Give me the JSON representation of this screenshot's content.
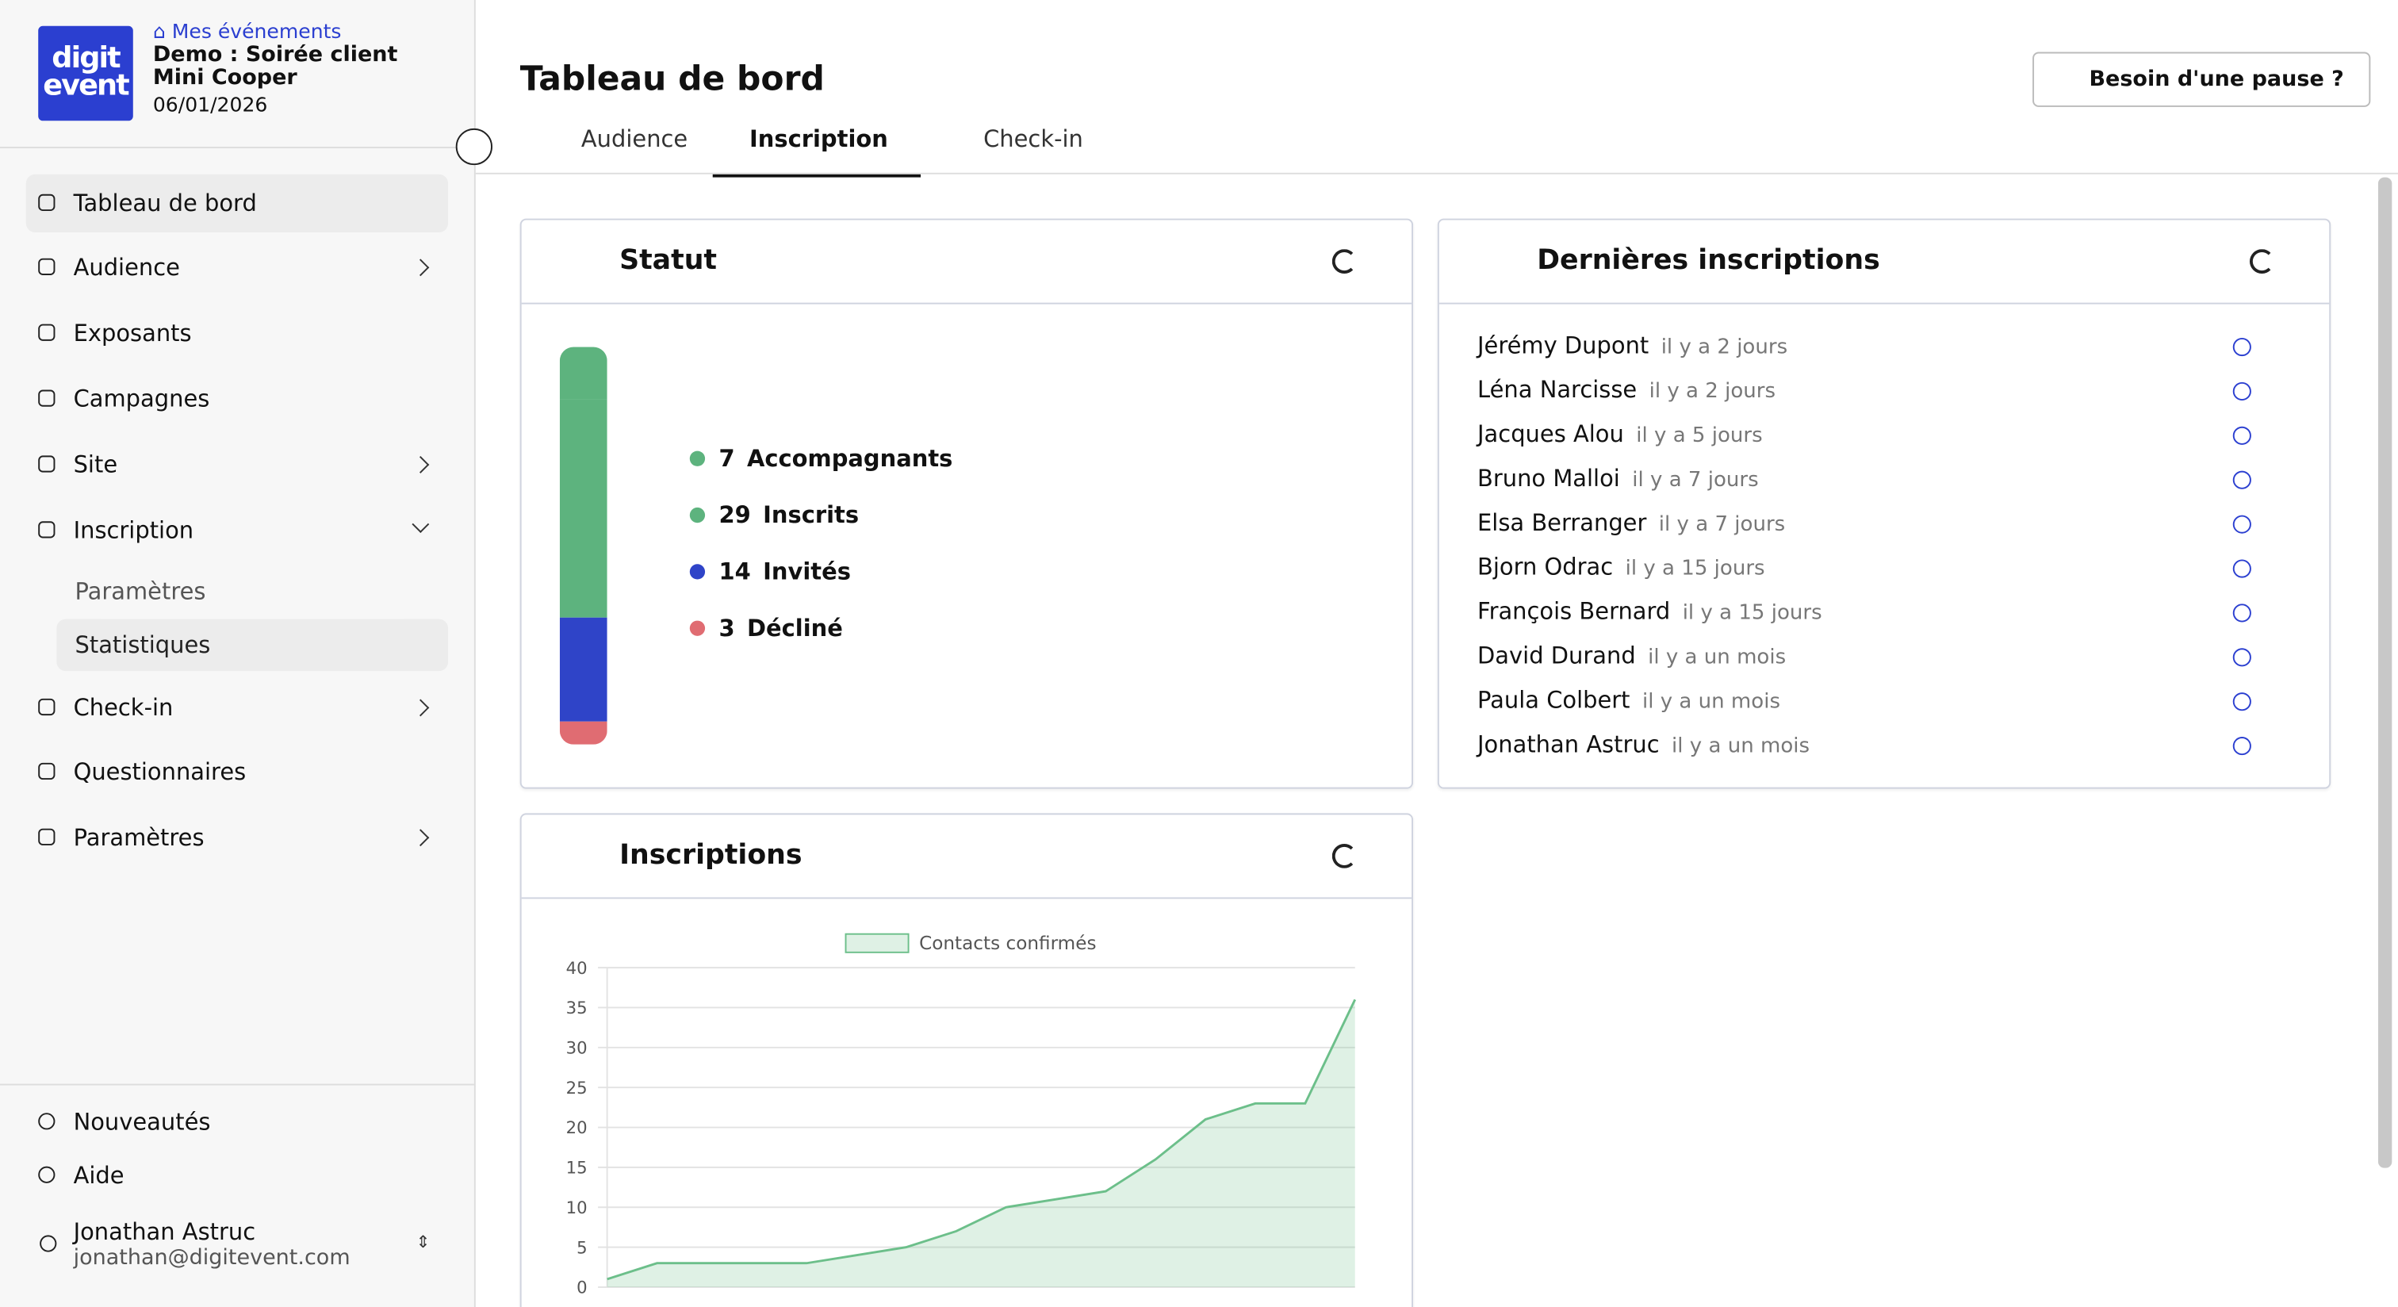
{
  "sidebar": {
    "logo": [
      "digit",
      "event"
    ],
    "breadcrumb": "Mes événements",
    "event_name": "Demo : Soirée client Mini Cooper",
    "event_date": "06/01/2026",
    "menu": [
      "Tableau de bord",
      "Audience",
      "Exposants",
      "Campagnes",
      "Site",
      "Inscription",
      "Check-in",
      "Questionnaires",
      "Paramètres"
    ],
    "submenu": [
      "Paramètres",
      "Statistiques"
    ],
    "footer": [
      "Nouveautés",
      "Aide"
    ],
    "user": {
      "name": "Jonathan Astruc",
      "email": "jonathan@digitevent.com"
    }
  },
  "header": {
    "title": "Tableau de bord",
    "button": "Besoin d'une pause ?",
    "tabs": [
      "Audience",
      "Inscription",
      "Check-in"
    ]
  },
  "status": {
    "title": "Statut",
    "items": [
      {
        "value": 7,
        "label": "Accompagnants",
        "color": "#5db37e"
      },
      {
        "value": 29,
        "label": "Inscrits",
        "color": "#5db37e"
      },
      {
        "value": 14,
        "label": "Invités",
        "color": "#2f44c8"
      },
      {
        "value": 3,
        "label": "Décliné",
        "color": "#e06c72"
      }
    ]
  },
  "recent": {
    "title": "Dernières inscriptions",
    "rows": [
      {
        "name": "Jérémy Dupont",
        "when": "il y a 2 jours"
      },
      {
        "name": "Léna Narcisse",
        "when": "il y a 2 jours"
      },
      {
        "name": "Jacques Alou",
        "when": "il y a 5 jours"
      },
      {
        "name": "Bruno Malloi",
        "when": "il y a 7 jours"
      },
      {
        "name": "Elsa Berranger",
        "when": "il y a 7 jours"
      },
      {
        "name": "Bjorn Odrac",
        "when": "il y a 15 jours"
      },
      {
        "name": "François Bernard",
        "when": "il y a 15 jours"
      },
      {
        "name": "David Durand",
        "when": "il y a un mois"
      },
      {
        "name": "Paula Colbert",
        "when": "il y a un mois"
      },
      {
        "name": "Jonathan Astruc",
        "when": "il y a un mois"
      }
    ]
  },
  "chart_data": {
    "type": "area",
    "title": "Inscriptions",
    "categories": [
      null,
      null,
      null,
      null,
      null,
      null,
      null,
      null,
      null,
      null,
      null,
      null,
      null,
      null,
      null,
      null
    ],
    "series": [
      {
        "name": "Contacts confirmés",
        "color": "#6cbf8a",
        "values": [
          1,
          3,
          3,
          3,
          3,
          4,
          5,
          7,
          10,
          11,
          12,
          16,
          21,
          23,
          23,
          36
        ]
      }
    ],
    "ylim": [
      0,
      40
    ],
    "yticks": [
      0,
      5,
      10,
      15,
      20,
      25,
      30,
      35,
      40
    ],
    "grid": true,
    "legend": "top"
  }
}
